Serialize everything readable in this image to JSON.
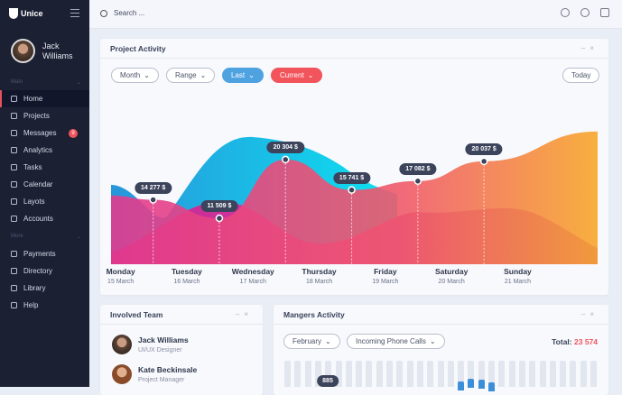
{
  "app": {
    "name": "Unice"
  },
  "user": {
    "name_line1": "Jack",
    "name_line2": "Williams"
  },
  "sidebar": {
    "section_main": "Main",
    "section_more": "More",
    "main_items": [
      {
        "label": "Home",
        "icon": "home-icon"
      },
      {
        "label": "Projects",
        "icon": "projects-icon"
      },
      {
        "label": "Messages",
        "icon": "chat-icon",
        "badge": "9"
      },
      {
        "label": "Analytics",
        "icon": "analytics-icon"
      },
      {
        "label": "Tasks",
        "icon": "tasks-icon"
      },
      {
        "label": "Calendar",
        "icon": "calendar-icon"
      },
      {
        "label": "Layots",
        "icon": "layouts-icon"
      },
      {
        "label": "Accounts",
        "icon": "accounts-icon"
      }
    ],
    "more_items": [
      {
        "label": "Payments",
        "icon": "payments-icon"
      },
      {
        "label": "Directory",
        "icon": "folder-icon"
      },
      {
        "label": "Library",
        "icon": "library-icon"
      },
      {
        "label": "Help",
        "icon": "help-icon"
      }
    ]
  },
  "search": {
    "placeholder": "Search ..."
  },
  "project": {
    "title": "Project Activity",
    "filters": [
      "Month",
      "Range",
      "Last",
      "Current"
    ],
    "today": "Today"
  },
  "chart_data": {
    "type": "area",
    "title": "Project Activity",
    "categories": [
      {
        "day": "Monday",
        "date": "15 March"
      },
      {
        "day": "Tuesday",
        "date": "16 March"
      },
      {
        "day": "Wednesday",
        "date": "17 March"
      },
      {
        "day": "Thursday",
        "date": "18 March"
      },
      {
        "day": "Friday",
        "date": "19 March"
      },
      {
        "day": "Saturday",
        "date": "20 March"
      },
      {
        "day": "Sunday",
        "date": "21 March"
      }
    ],
    "labels": [
      {
        "pos": 0.5,
        "value": 14277,
        "text": "14 277 $"
      },
      {
        "pos": 1.5,
        "value": 11509,
        "text": "11 509 $"
      },
      {
        "pos": 2.5,
        "value": 20304,
        "text": "20 304 $"
      },
      {
        "pos": 3.5,
        "value": 15741,
        "text": "15 741 $"
      },
      {
        "pos": 4.5,
        "value": 17082,
        "text": "17 082 $"
      },
      {
        "pos": 5.5,
        "value": 20037,
        "text": "20 037 $"
      }
    ]
  },
  "team": {
    "title": "Involved Team",
    "members": [
      {
        "name": "Jack Williams",
        "role": "UI/UX Designer"
      },
      {
        "name": "Kate Beckinsale",
        "role": "Project Manager"
      }
    ]
  },
  "managers": {
    "title": "Mangers Activity",
    "filter1": "February",
    "filter2": "Incoming Phone Calls",
    "total_label": "Total:",
    "total_value": "23 574",
    "bar_label": "885"
  }
}
